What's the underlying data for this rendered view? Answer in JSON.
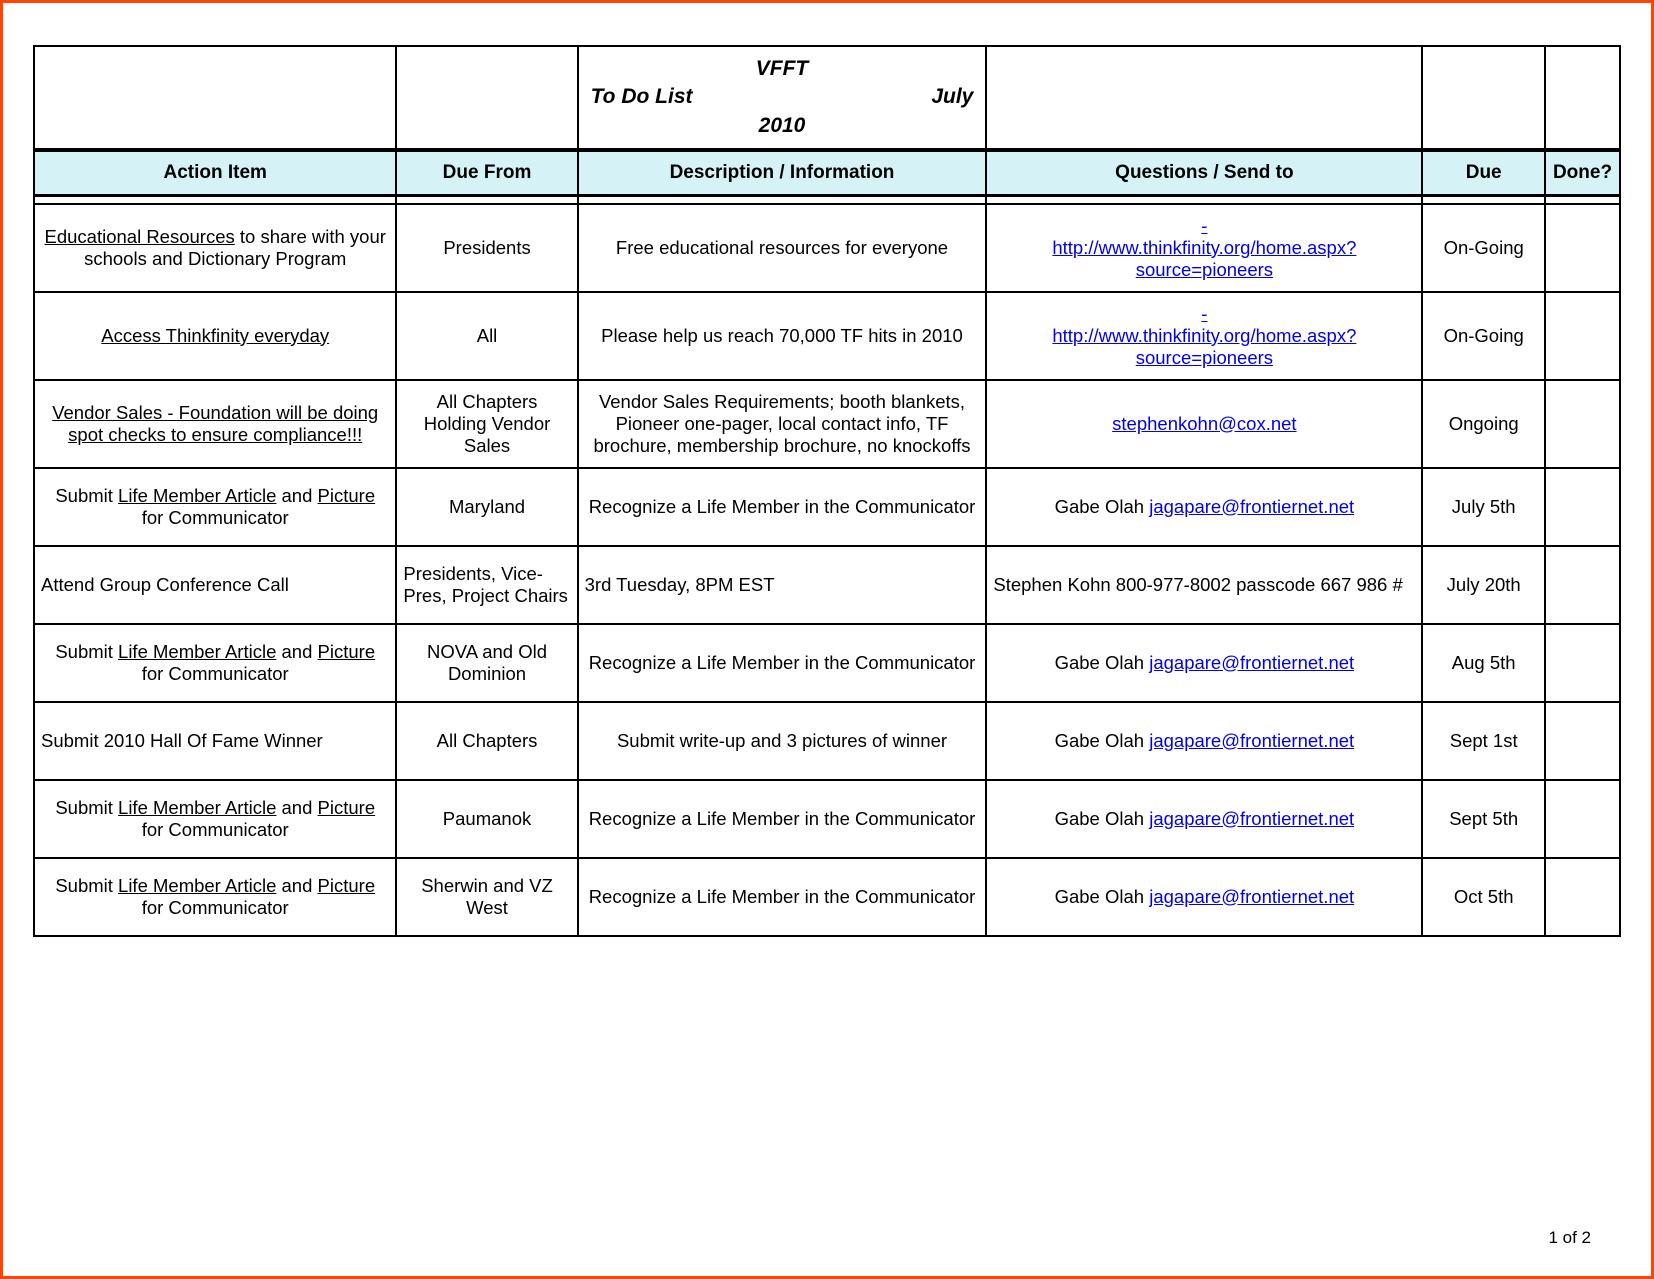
{
  "title": {
    "org": "VFFT",
    "label": "To Do List",
    "month": "July",
    "year": "2010"
  },
  "columns": {
    "action": "Action Item",
    "dueFrom": "Due From",
    "desc": "Description / Information",
    "questions": "Questions / Send to",
    "due": "Due",
    "done": "Done?"
  },
  "rows": [
    {
      "action_pre_u": "Educational Resources",
      "action_post": " to share with your schools and Dictionary Program",
      "dueFrom": "Presidents",
      "desc": "Free educational resources for everyone",
      "q_text": "",
      "q_link": "http://www.thinkfinity.org/home.aspx?source=pioneers",
      "q_dash": true,
      "due": "On-Going",
      "center": true
    },
    {
      "action_u_full": "Access Thinkfinity everyday",
      "dueFrom": "All",
      "desc": "Please help us reach 70,000 TF hits in 2010",
      "q_text": "",
      "q_link": "http://www.thinkfinity.org/home.aspx?source=pioneers",
      "q_dash": true,
      "due": "On-Going",
      "center": true
    },
    {
      "action_u_full": "Vendor Sales - Foundation will be doing spot checks to ensure compliance!!!",
      "dueFrom": "All Chapters Holding Vendor Sales",
      "desc": "Vendor Sales Requirements; booth blankets, Pioneer one-pager, local contact info, TF brochure, membership brochure, no knockoffs",
      "q_text": "",
      "q_link": "stephenkohn@cox.net",
      "due": "Ongoing",
      "center": true
    },
    {
      "action_html": "Submit <span class=\"u\">Life Member Article</span> and <span class=\"u\">Picture</span> for Communicator",
      "dueFrom": "Maryland",
      "desc": "Recognize a Life Member in the Communicator",
      "q_text": "Gabe Olah ",
      "q_link": "jagapare@frontiernet.net",
      "due": "July 5th",
      "center": true
    },
    {
      "action_plain": "Attend Group Conference Call",
      "dueFrom": "Presidents, Vice-Pres, Project Chairs",
      "desc": "3rd Tuesday,  8PM EST",
      "q_plain": "Stephen Kohn  800-977-8002   passcode  667 986 #",
      "due": "July 20th",
      "left": true
    },
    {
      "action_html": "Submit <span class=\"u\">Life Member Article</span> and <span class=\"u\">Picture</span> for Communicator",
      "dueFrom": "NOVA and Old Dominion",
      "desc": "Recognize a Life Member in the Communicator",
      "q_text": "Gabe Olah ",
      "q_link": "jagapare@frontiernet.net",
      "due": "Aug 5th",
      "center": true
    },
    {
      "action_plain": "Submit 2010 Hall Of Fame Winner",
      "dueFrom": "All Chapters",
      "desc": "Submit write-up and 3 pictures of winner",
      "q_text": "Gabe Olah ",
      "q_link": "jagapare@frontiernet.net",
      "due": "Sept 1st",
      "center_action_left": true
    },
    {
      "action_html": "Submit <span class=\"u\">Life Member Article</span> and <span class=\"u\">Picture</span> for Communicator",
      "dueFrom": "Paumanok",
      "desc": "Recognize a Life Member in the Communicator",
      "q_text": "Gabe Olah ",
      "q_link": "jagapare@frontiernet.net",
      "due": "Sept 5th",
      "center": true
    },
    {
      "action_html": "Submit <span class=\"u\">Life Member Article</span> and <span class=\"u\">Picture</span> for Communicator",
      "dueFrom": "Sherwin and VZ West",
      "desc": "Recognize a Life Member in the Communicator",
      "q_text": "Gabe Olah ",
      "q_link": "jagapare@frontiernet.net",
      "due": "Oct 5th",
      "center": true
    }
  ],
  "pageNum": "1  of  2",
  "colors": {
    "border": "#ff4500",
    "headerBg": "#d5f3f6",
    "link": "#0000ee",
    "text": "#000000"
  }
}
